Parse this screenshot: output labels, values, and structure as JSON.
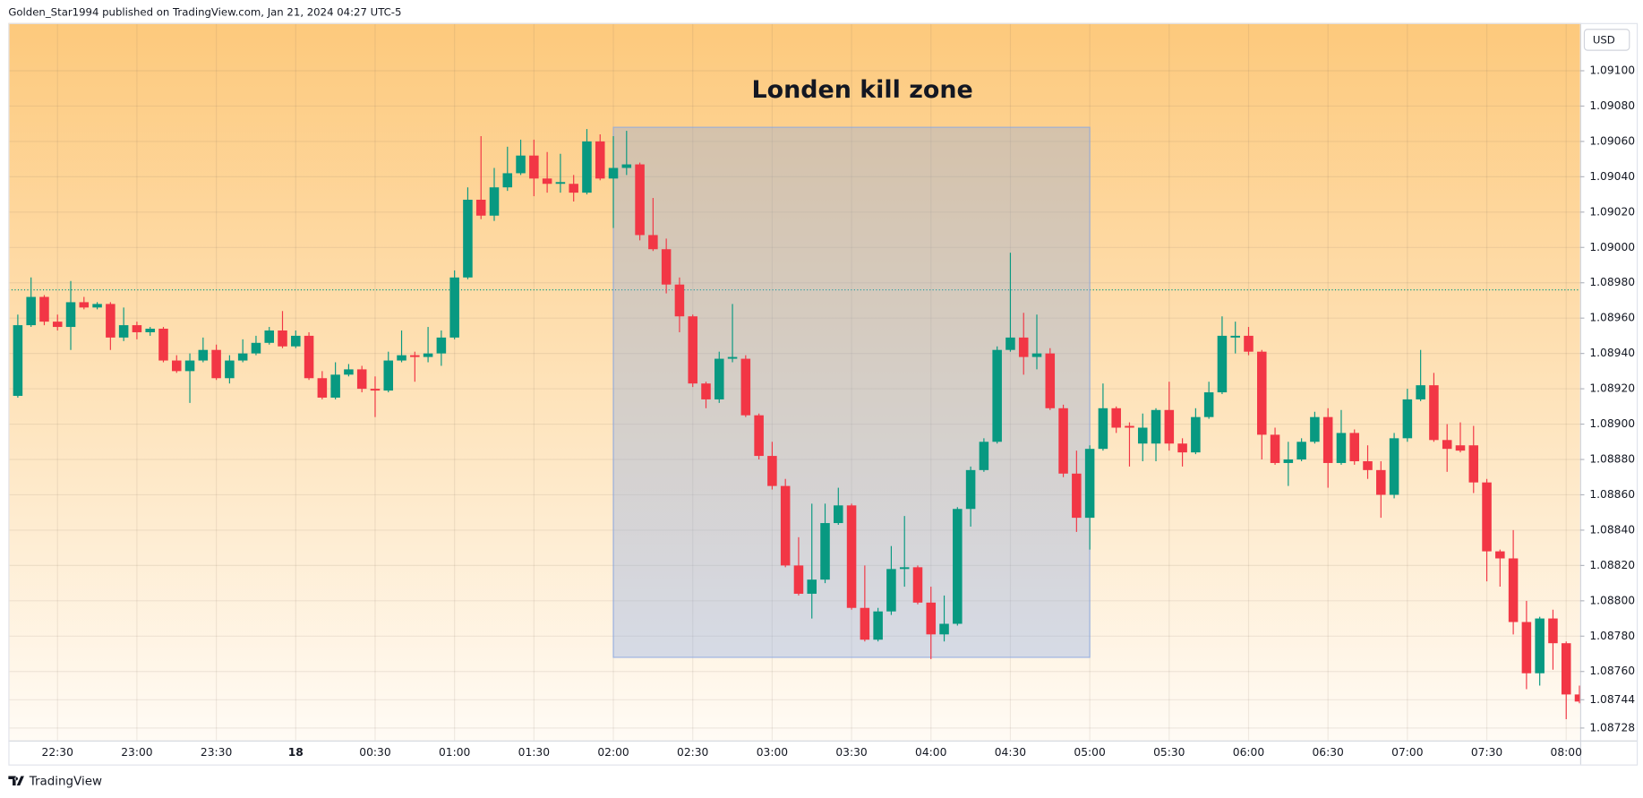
{
  "header": "Golden_Star1994 published on TradingView.com, Jan 21, 2024 04:27 UTC-5",
  "currency": "USD",
  "footer": "TradingView",
  "chart_data": {
    "type": "candlestick",
    "up_color": "#089981",
    "down_color": "#f23645",
    "grid": true,
    "categories": [
      null,
      null,
      null,
      "22:30",
      null,
      null,
      null,
      null,
      null,
      "23:00",
      null,
      null,
      null,
      null,
      null,
      "23:30",
      null,
      null,
      null,
      null,
      null,
      "18",
      null,
      null,
      null,
      null,
      null,
      "00:30",
      null,
      null,
      null,
      null,
      null,
      "01:00",
      null,
      null,
      null,
      null,
      null,
      "01:30",
      null,
      null,
      null,
      null,
      null,
      "02:00",
      null,
      null,
      null,
      null,
      null,
      "02:30",
      null,
      null,
      null,
      null,
      null,
      "03:00",
      null,
      null,
      null,
      null,
      null,
      "03:30",
      null,
      null,
      null,
      null,
      null,
      "04:00",
      null,
      null,
      null,
      null,
      null,
      "04:30",
      null,
      null,
      null,
      null,
      null,
      "05:00",
      null,
      null,
      null,
      null,
      null,
      "05:30",
      null,
      null,
      null,
      null,
      null,
      "06:00",
      null,
      null,
      null,
      null,
      null,
      "06:30",
      null,
      null,
      null,
      null,
      null,
      "07:00",
      null,
      null,
      null,
      null,
      null,
      "07:30",
      null,
      null,
      null,
      null,
      null,
      "08:00",
      null
    ],
    "open": [
      1.08916,
      1.08956,
      1.08972,
      1.08958,
      1.08955,
      1.08969,
      1.08966,
      1.08968,
      1.08949,
      1.08956,
      1.08952,
      1.08954,
      1.08936,
      1.0893,
      1.08936,
      1.08942,
      1.08926,
      1.08936,
      1.0894,
      1.08946,
      1.08953,
      1.08944,
      1.0895,
      1.08926,
      1.08915,
      1.08928,
      1.08931,
      1.0892,
      1.08919,
      1.08936,
      1.08939,
      1.08938,
      1.0894,
      1.08949,
      1.08983,
      1.09027,
      1.09018,
      1.09034,
      1.09042,
      1.09052,
      1.09039,
      1.09036,
      1.09036,
      1.09031,
      1.0906,
      1.09039,
      1.09045,
      1.09047,
      1.09007,
      1.08999,
      1.08979,
      1.08961,
      1.08923,
      1.08914,
      1.08937,
      1.08937,
      1.08905,
      1.08882,
      1.08865,
      1.0882,
      1.08804,
      1.08812,
      1.08844,
      1.08854,
      1.08796,
      1.08778,
      1.08794,
      1.08818,
      1.08819,
      1.08799,
      1.08781,
      1.08787,
      1.08852,
      1.08874,
      1.0889,
      1.08942,
      1.08949,
      1.08938,
      1.0894,
      1.08909,
      1.08872,
      1.08847,
      1.08886,
      1.08909,
      1.08899,
      1.08889,
      1.08889,
      1.08908,
      1.08889,
      1.08884,
      1.08904,
      1.08918,
      1.08949,
      1.0895,
      1.08941,
      1.08894,
      1.08878,
      1.0888,
      1.0889,
      1.08904,
      1.08878,
      1.08895,
      1.08879,
      1.08874,
      1.0886,
      1.08892,
      1.08914,
      1.08922,
      1.08891,
      1.08888,
      1.08888,
      1.08867,
      1.08828,
      1.08824,
      1.08788,
      1.08759,
      1.0879,
      1.08776,
      1.08747
    ],
    "high": [
      1.08962,
      1.08983,
      1.08973,
      1.08962,
      1.08981,
      1.08972,
      1.08969,
      1.08969,
      1.08966,
      1.08958,
      1.08955,
      1.08955,
      1.08939,
      1.0894,
      1.08949,
      1.08945,
      1.08939,
      1.08948,
      1.0895,
      1.08955,
      1.08964,
      1.08953,
      1.08952,
      1.0893,
      1.08935,
      1.08934,
      1.08933,
      1.08927,
      1.08941,
      1.08953,
      1.08941,
      1.08955,
      1.08953,
      1.08987,
      1.09034,
      1.09063,
      1.09045,
      1.09057,
      1.09061,
      1.09061,
      1.09054,
      1.09053,
      1.09041,
      1.09067,
      1.09064,
      1.09063,
      1.09066,
      1.09048,
      1.09028,
      1.09005,
      1.08983,
      1.08962,
      1.08924,
      1.08941,
      1.08968,
      1.08939,
      1.08906,
      1.0889,
      1.08869,
      1.08836,
      1.08855,
      1.08855,
      1.08864,
      1.08855,
      1.0882,
      1.08796,
      1.08831,
      1.08848,
      1.0882,
      1.08808,
      1.08803,
      1.08853,
      1.08876,
      1.08892,
      1.08944,
      1.08997,
      1.08963,
      1.08962,
      1.08943,
      1.08911,
      1.08885,
      1.08888,
      1.08923,
      1.0891,
      1.08901,
      1.08906,
      1.08909,
      1.08924,
      1.08892,
      1.08909,
      1.08924,
      1.08961,
      1.08958,
      1.08955,
      1.08942,
      1.08898,
      1.0889,
      1.08892,
      1.08907,
      1.08909,
      1.08908,
      1.08897,
      1.08888,
      1.08879,
      1.08895,
      1.0892,
      1.08942,
      1.08929,
      1.089,
      1.08901,
      1.08899,
      1.08869,
      1.08829,
      1.0884,
      1.088,
      1.08791,
      1.08795,
      1.08777,
      1.08752
    ],
    "low": [
      1.08915,
      1.08955,
      1.08956,
      1.08953,
      1.08942,
      1.08965,
      1.08965,
      1.08942,
      1.08947,
      1.08948,
      1.0895,
      1.08935,
      1.08929,
      1.08912,
      1.08935,
      1.08925,
      1.08923,
      1.08935,
      1.08939,
      1.08945,
      1.08943,
      1.08943,
      1.08925,
      1.08914,
      1.08914,
      1.08927,
      1.08918,
      1.08904,
      1.08918,
      1.08935,
      1.08924,
      1.08935,
      1.08933,
      1.08948,
      1.08982,
      1.09016,
      1.09015,
      1.09032,
      1.09041,
      1.09029,
      1.09031,
      1.09031,
      1.09026,
      1.0903,
      1.09038,
      1.09011,
      1.09041,
      1.09004,
      1.08998,
      1.08974,
      1.08952,
      1.08921,
      1.08909,
      1.08912,
      1.08935,
      1.08904,
      1.0888,
      1.08863,
      1.08819,
      1.08803,
      1.0879,
      1.0881,
      1.08843,
      1.08795,
      1.08777,
      1.08777,
      1.08792,
      1.08808,
      1.08798,
      1.08767,
      1.08777,
      1.08786,
      1.08842,
      1.08873,
      1.08889,
      1.08941,
      1.08928,
      1.08931,
      1.08908,
      1.0887,
      1.08839,
      1.08829,
      1.08885,
      1.08895,
      1.08876,
      1.08879,
      1.08879,
      1.08885,
      1.08876,
      1.08883,
      1.08903,
      1.08917,
      1.0894,
      1.08939,
      1.0888,
      1.08877,
      1.08865,
      1.08879,
      1.08889,
      1.08864,
      1.08877,
      1.08877,
      1.08869,
      1.08847,
      1.08858,
      1.0889,
      1.08913,
      1.0889,
      1.08873,
      1.08884,
      1.08861,
      1.08811,
      1.08808,
      1.08781,
      1.0875,
      1.08752,
      1.08761,
      1.08733,
      1.08742
    ],
    "close": [
      1.08956,
      1.08972,
      1.08958,
      1.08955,
      1.08969,
      1.08966,
      1.08968,
      1.08949,
      1.08956,
      1.08952,
      1.08954,
      1.08936,
      1.0893,
      1.08936,
      1.08942,
      1.08926,
      1.08936,
      1.0894,
      1.08946,
      1.08953,
      1.08944,
      1.0895,
      1.08926,
      1.08915,
      1.08928,
      1.08931,
      1.0892,
      1.08919,
      1.08936,
      1.08939,
      1.08938,
      1.0894,
      1.08949,
      1.08983,
      1.09027,
      1.09018,
      1.09034,
      1.09042,
      1.09052,
      1.09039,
      1.09036,
      1.09037,
      1.09031,
      1.0906,
      1.09039,
      1.09045,
      1.09047,
      1.09007,
      1.08999,
      1.08979,
      1.08961,
      1.08923,
      1.08914,
      1.08937,
      1.08938,
      1.08905,
      1.08882,
      1.08865,
      1.0882,
      1.08804,
      1.08812,
      1.08844,
      1.08854,
      1.08796,
      1.08778,
      1.08794,
      1.08818,
      1.08819,
      1.08799,
      1.08781,
      1.08787,
      1.08852,
      1.08874,
      1.0889,
      1.08942,
      1.08949,
      1.08938,
      1.0894,
      1.08909,
      1.08872,
      1.08847,
      1.08886,
      1.08909,
      1.08898,
      1.08898,
      1.08898,
      1.08908,
      1.08889,
      1.08884,
      1.08904,
      1.08918,
      1.0895,
      1.0895,
      1.08941,
      1.08894,
      1.08878,
      1.0888,
      1.0889,
      1.08904,
      1.08878,
      1.08895,
      1.08879,
      1.08874,
      1.0886,
      1.08892,
      1.08914,
      1.08922,
      1.08891,
      1.08886,
      1.08885,
      1.08867,
      1.08828,
      1.08824,
      1.08788,
      1.08759,
      1.0879,
      1.08776,
      1.08747,
      1.08743
    ],
    "ylim": [
      1.08721,
      1.09127
    ],
    "yticks": [
      {
        "value": 1.091,
        "label": "1.09100"
      },
      {
        "value": 1.0908,
        "label": "1.09080"
      },
      {
        "value": 1.0906,
        "label": "1.09060"
      },
      {
        "value": 1.0904,
        "label": "1.09040"
      },
      {
        "value": 1.0902,
        "label": "1.09020"
      },
      {
        "value": 1.09,
        "label": "1.09000"
      },
      {
        "value": 1.0898,
        "label": "1.08980"
      },
      {
        "value": 1.0896,
        "label": "1.08960"
      },
      {
        "value": 1.0894,
        "label": "1.08940"
      },
      {
        "value": 1.0892,
        "label": "1.08920"
      },
      {
        "value": 1.089,
        "label": "1.08900"
      },
      {
        "value": 1.0888,
        "label": "1.08880"
      },
      {
        "value": 1.0886,
        "label": "1.08860"
      },
      {
        "value": 1.0884,
        "label": "1.08840"
      },
      {
        "value": 1.0882,
        "label": "1.08820"
      },
      {
        "value": 1.088,
        "label": "1.08800"
      },
      {
        "value": 1.0878,
        "label": "1.08780"
      },
      {
        "value": 1.0876,
        "label": "1.08760"
      },
      1.08744,
      1.08728
    ],
    "price_line": 1.08976,
    "zone": {
      "label": "Londen kill zone",
      "x_range": [
        "02:00",
        "05:00"
      ],
      "top": 1.09068,
      "bottom": 1.08768,
      "color": "#89a8e2"
    }
  }
}
